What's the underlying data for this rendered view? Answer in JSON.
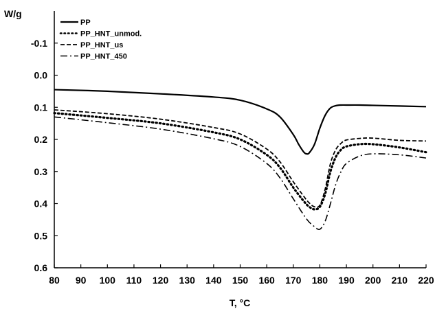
{
  "chart_data": {
    "type": "line",
    "title": "",
    "xlabel": "T, °C",
    "ylabel": "W/g",
    "xlim": [
      80,
      220
    ],
    "ylim": [
      0.6,
      -0.2
    ],
    "y_axis_inverted": true,
    "x_ticks": [
      80,
      90,
      100,
      110,
      120,
      130,
      140,
      150,
      160,
      170,
      180,
      190,
      200,
      210,
      220
    ],
    "y_ticks": [
      -0.1,
      0.0,
      0.1,
      0.2,
      0.3,
      0.4,
      0.5,
      0.6
    ],
    "y_tick_labels": [
      "-0.1",
      "0.0",
      "0.1",
      "0.2",
      "0.3",
      "0.4",
      "0.5",
      "0.6"
    ],
    "grid": false,
    "legend_position": "top-left",
    "series": [
      {
        "name": "PP",
        "dash": "solid",
        "color": "#000000",
        "x": [
          80,
          100,
          120,
          140,
          150,
          160,
          165,
          170,
          172,
          174,
          175,
          176,
          178,
          180,
          182,
          184,
          186,
          188,
          190,
          195,
          200,
          210,
          220
        ],
        "y": [
          0.045,
          0.05,
          0.058,
          0.068,
          0.078,
          0.105,
          0.13,
          0.185,
          0.215,
          0.24,
          0.245,
          0.242,
          0.215,
          0.165,
          0.125,
          0.102,
          0.095,
          0.093,
          0.093,
          0.093,
          0.094,
          0.096,
          0.098
        ]
      },
      {
        "name": "PP_HNT_unmod.",
        "dash": "dotted",
        "color": "#000000",
        "x": [
          80,
          100,
          120,
          140,
          150,
          160,
          165,
          170,
          174,
          176,
          178,
          180,
          182,
          184,
          186,
          188,
          190,
          195,
          200,
          210,
          220
        ],
        "y": [
          0.118,
          0.133,
          0.15,
          0.178,
          0.2,
          0.248,
          0.288,
          0.35,
          0.393,
          0.41,
          0.418,
          0.41,
          0.37,
          0.3,
          0.255,
          0.232,
          0.222,
          0.215,
          0.215,
          0.225,
          0.24
        ]
      },
      {
        "name": "PP_HNT_us",
        "dash": "dashed",
        "color": "#000000",
        "x": [
          80,
          100,
          120,
          140,
          150,
          160,
          165,
          170,
          174,
          176,
          178,
          180,
          182,
          184,
          186,
          188,
          190,
          195,
          200,
          210,
          220
        ],
        "y": [
          0.108,
          0.12,
          0.137,
          0.163,
          0.183,
          0.23,
          0.27,
          0.332,
          0.378,
          0.398,
          0.41,
          0.405,
          0.355,
          0.275,
          0.232,
          0.212,
          0.202,
          0.197,
          0.196,
          0.203,
          0.205
        ]
      },
      {
        "name": "PP_HNT_450",
        "dash": "dashdot",
        "color": "#000000",
        "x": [
          80,
          100,
          120,
          140,
          150,
          160,
          165,
          170,
          175,
          178,
          180,
          182,
          184,
          186,
          188,
          190,
          195,
          200,
          210,
          220
        ],
        "y": [
          0.13,
          0.148,
          0.168,
          0.198,
          0.222,
          0.275,
          0.32,
          0.385,
          0.448,
          0.472,
          0.48,
          0.455,
          0.4,
          0.34,
          0.3,
          0.275,
          0.252,
          0.245,
          0.248,
          0.258
        ]
      }
    ]
  }
}
